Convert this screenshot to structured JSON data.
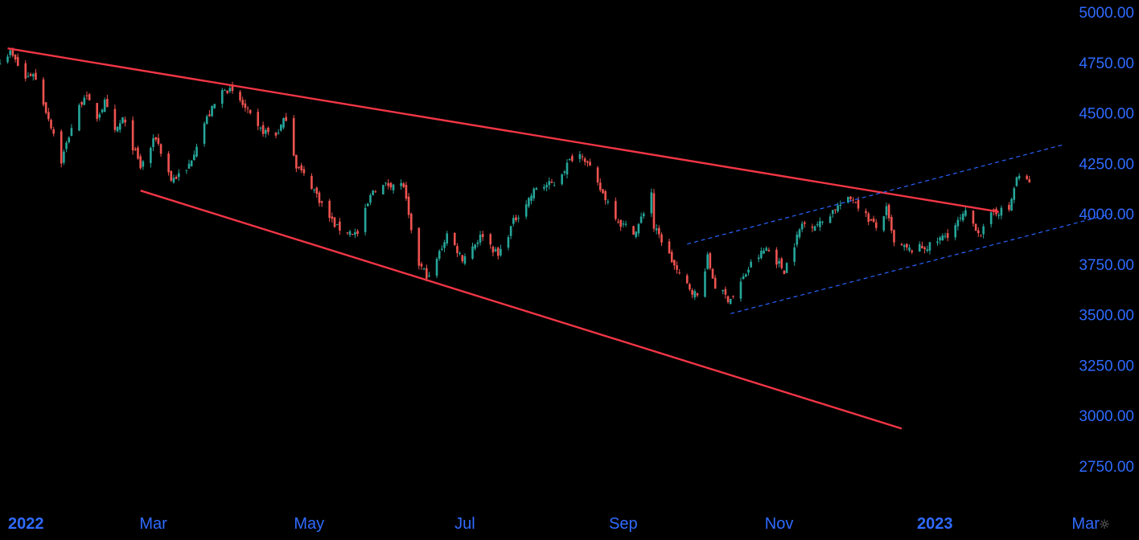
{
  "colors": {
    "background": "#000000",
    "up_candle": "#26a69a",
    "down_candle": "#ef5350",
    "trendline": "#f23645",
    "channel": "#2962ff",
    "axis_text": "#2f6bff"
  },
  "settings_icon": "settings-sun-icon",
  "chart_data": {
    "type": "candlestick",
    "interval": "1D",
    "ylim": [
      2570,
      5060
    ],
    "y_ticks": [
      "5000.00",
      "4750.00",
      "4500.00",
      "4250.00",
      "4000.00",
      "3750.00",
      "3500.00",
      "3250.00",
      "3000.00",
      "2750.00"
    ],
    "x_ticks": [
      {
        "label": "2022",
        "date": "2022-01-01",
        "bold": true
      },
      {
        "label": "Mar",
        "date": "2022-03-01",
        "bold": false
      },
      {
        "label": "May",
        "date": "2022-05-01",
        "bold": false
      },
      {
        "label": "Jul",
        "date": "2022-07-01",
        "bold": false
      },
      {
        "label": "Sep",
        "date": "2022-09-01",
        "bold": false
      },
      {
        "label": "Nov",
        "date": "2022-11-01",
        "bold": false
      },
      {
        "label": "2023",
        "date": "2023-01-01",
        "bold": true
      },
      {
        "label": "Mar",
        "date": "2023-03-01",
        "bold": false
      }
    ],
    "xlim": [
      "2021-12-31",
      "2023-03-20"
    ],
    "close_path": [
      [
        "2021-12-31",
        4765
      ],
      [
        "2022-01-04",
        4800
      ],
      [
        "2022-01-10",
        4670
      ],
      [
        "2022-01-13",
        4700
      ],
      [
        "2022-01-21",
        4400
      ],
      [
        "2022-01-24",
        4260
      ],
      [
        "2022-01-28",
        4430
      ],
      [
        "2022-02-02",
        4590
      ],
      [
        "2022-02-07",
        4480
      ],
      [
        "2022-02-10",
        4550
      ],
      [
        "2022-02-14",
        4400
      ],
      [
        "2022-02-17",
        4470
      ],
      [
        "2022-02-24",
        4230
      ],
      [
        "2022-03-02",
        4380
      ],
      [
        "2022-03-08",
        4170
      ],
      [
        "2022-03-14",
        4210
      ],
      [
        "2022-03-21",
        4450
      ],
      [
        "2022-03-29",
        4630
      ],
      [
        "2022-04-04",
        4560
      ],
      [
        "2022-04-11",
        4420
      ],
      [
        "2022-04-18",
        4390
      ],
      [
        "2022-04-22",
        4480
      ],
      [
        "2022-04-26",
        4240
      ],
      [
        "2022-05-02",
        4140
      ],
      [
        "2022-05-09",
        3980
      ],
      [
        "2022-05-12",
        3930
      ],
      [
        "2022-05-20",
        3900
      ],
      [
        "2022-05-26",
        4120
      ],
      [
        "2022-06-02",
        4150
      ],
      [
        "2022-06-07",
        4140
      ],
      [
        "2022-06-10",
        3900
      ],
      [
        "2022-06-13",
        3750
      ],
      [
        "2022-06-17",
        3680
      ],
      [
        "2022-06-24",
        3900
      ],
      [
        "2022-06-30",
        3780
      ],
      [
        "2022-07-08",
        3900
      ],
      [
        "2022-07-14",
        3790
      ],
      [
        "2022-07-20",
        3960
      ],
      [
        "2022-07-29",
        4130
      ],
      [
        "2022-08-05",
        4150
      ],
      [
        "2022-08-12",
        4280
      ],
      [
        "2022-08-16",
        4300
      ],
      [
        "2022-08-22",
        4140
      ],
      [
        "2022-08-26",
        4060
      ],
      [
        "2022-08-31",
        3950
      ],
      [
        "2022-09-06",
        3910
      ],
      [
        "2022-09-12",
        4110
      ],
      [
        "2022-09-13",
        3930
      ],
      [
        "2022-09-16",
        3870
      ],
      [
        "2022-09-23",
        3690
      ],
      [
        "2022-09-30",
        3590
      ],
      [
        "2022-10-04",
        3780
      ],
      [
        "2022-10-07",
        3640
      ],
      [
        "2022-10-12",
        3580
      ],
      [
        "2022-10-14",
        3590
      ],
      [
        "2022-10-21",
        3750
      ],
      [
        "2022-10-27",
        3830
      ],
      [
        "2022-11-03",
        3720
      ],
      [
        "2022-11-10",
        3950
      ],
      [
        "2022-11-17",
        3950
      ],
      [
        "2022-11-23",
        4030
      ],
      [
        "2022-11-30",
        4080
      ],
      [
        "2022-12-05",
        3990
      ],
      [
        "2022-12-09",
        3930
      ],
      [
        "2022-12-13",
        4020
      ],
      [
        "2022-12-16",
        3850
      ],
      [
        "2022-12-22",
        3820
      ],
      [
        "2022-12-30",
        3840
      ],
      [
        "2023-01-06",
        3900
      ],
      [
        "2023-01-13",
        4000
      ],
      [
        "2023-01-19",
        3900
      ],
      [
        "2023-01-24",
        4010
      ],
      [
        "2023-01-30",
        4020
      ],
      [
        "2023-02-02",
        4180
      ],
      [
        "2023-02-07",
        4160
      ]
    ],
    "drawings": [
      {
        "kind": "trendline",
        "style": "solid",
        "from": [
          "2022-01-03",
          4820
        ],
        "to": [
          "2023-01-26",
          4010
        ]
      },
      {
        "kind": "trendline",
        "style": "solid",
        "from": [
          "2022-02-24",
          4115
        ],
        "to": [
          "2022-12-19",
          2935
        ]
      },
      {
        "kind": "channel",
        "style": "dashed",
        "from": [
          "2022-09-26",
          3850
        ],
        "to": [
          "2023-02-21",
          4345
        ]
      },
      {
        "kind": "channel",
        "style": "dashed",
        "from": [
          "2022-10-13",
          3505
        ],
        "to": [
          "2023-03-11",
          4000
        ]
      }
    ]
  }
}
